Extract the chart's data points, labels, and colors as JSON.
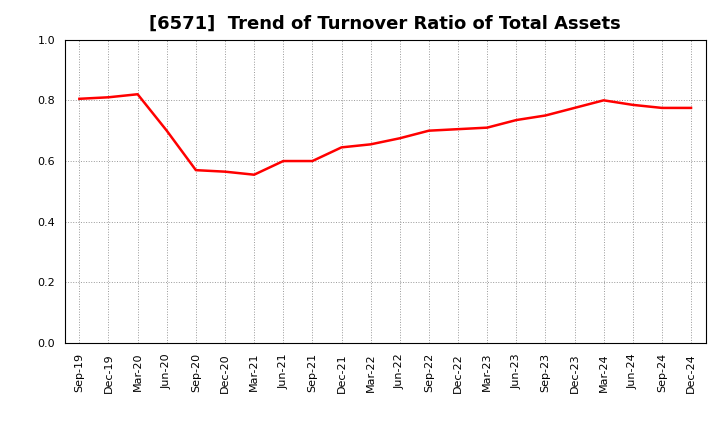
{
  "title": "[6571]  Trend of Turnover Ratio of Total Assets",
  "labels": [
    "Sep-19",
    "Dec-19",
    "Mar-20",
    "Jun-20",
    "Sep-20",
    "Dec-20",
    "Mar-21",
    "Jun-21",
    "Sep-21",
    "Dec-21",
    "Mar-22",
    "Jun-22",
    "Sep-22",
    "Dec-22",
    "Mar-23",
    "Jun-23",
    "Sep-23",
    "Dec-23",
    "Mar-24",
    "Jun-24",
    "Sep-24",
    "Dec-24"
  ],
  "values": [
    0.805,
    0.81,
    0.82,
    0.7,
    0.57,
    0.565,
    0.555,
    0.6,
    0.6,
    0.645,
    0.655,
    0.675,
    0.7,
    0.705,
    0.71,
    0.735,
    0.75,
    0.775,
    0.8,
    0.785,
    0.775,
    0.775
  ],
  "line_color": "#ff0000",
  "line_width": 1.8,
  "ylim": [
    0.0,
    1.0
  ],
  "yticks": [
    0.0,
    0.2,
    0.4,
    0.6,
    0.8,
    1.0
  ],
  "grid_color": "#999999",
  "bg_color": "#ffffff",
  "title_fontsize": 13,
  "tick_fontsize": 8,
  "title_color": "#000000"
}
